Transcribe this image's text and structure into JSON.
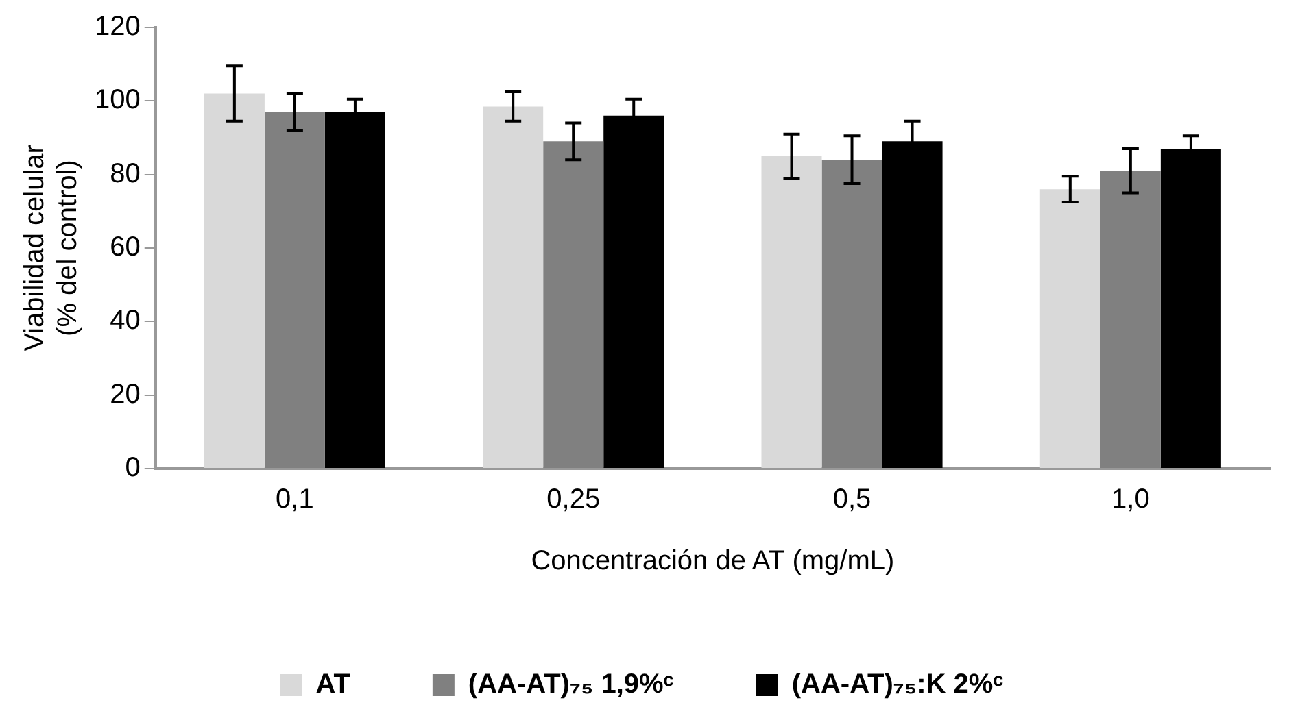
{
  "chart_data": {
    "type": "bar",
    "categories": [
      "0,1",
      "0,25",
      "0,5",
      "1,0"
    ],
    "xlabel": "Concentración de AT (mg/mL)",
    "ylabel": "Viabilidad celular\n(% del control)",
    "ylim": [
      0,
      120
    ],
    "yticks": [
      0,
      20,
      40,
      60,
      80,
      100,
      120
    ],
    "grid": false,
    "legend": "bottom",
    "series": [
      {
        "name": "AT",
        "color": "#d9d9d9",
        "values": [
          102,
          98.5,
          85,
          76
        ],
        "errors": [
          7.5,
          4,
          6,
          3.5
        ]
      },
      {
        "name": "(AA-AT)₇₅ 1,9%ᶜ",
        "color": "#808080",
        "values": [
          97,
          89,
          84,
          81
        ],
        "errors": [
          5,
          5,
          6.5,
          6
        ]
      },
      {
        "name": "(AA-AT)₇₅:K 2%ᶜ",
        "color": "#000000",
        "values": [
          97,
          96,
          89,
          87
        ],
        "errors": [
          3.5,
          4.5,
          5.5,
          3.5
        ]
      }
    ]
  }
}
